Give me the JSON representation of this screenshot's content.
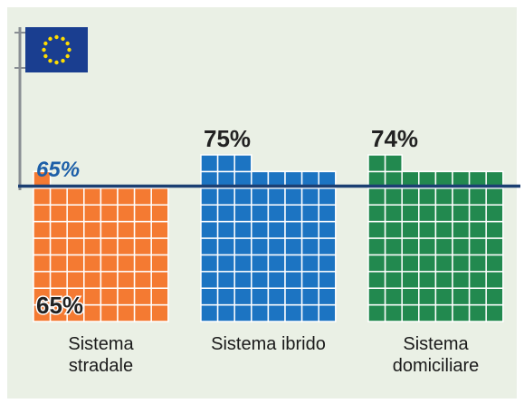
{
  "chart_data": {
    "type": "waffle-bar",
    "categories": [
      "Sistema stradale",
      "Sistema ibrido",
      "Sistema domiciliare"
    ],
    "values": [
      65,
      75,
      74
    ],
    "value_labels": [
      "65%",
      "75%",
      "74%"
    ],
    "colors": [
      "#f47a32",
      "#1c74c2",
      "#22894f"
    ],
    "target": {
      "value": 65,
      "label": "65%"
    },
    "target_color": "#1b3f72"
  }
}
